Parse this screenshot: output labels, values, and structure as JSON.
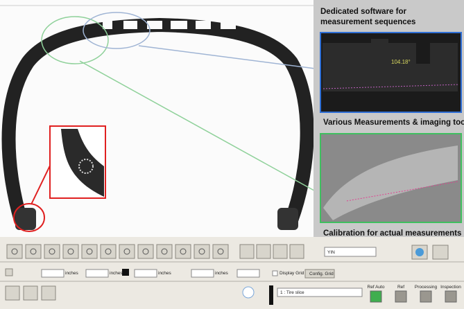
{
  "viewer": {
    "angle_label": "104.18°"
  },
  "callouts": {
    "software": "Dedicated software for measurement sequences",
    "tools": "Various Measurements & imaging tools",
    "calibration": "Calibration for actual measurements"
  },
  "toolbar": {
    "mode_select": "YIN",
    "units": [
      "inches",
      "inches",
      "inches",
      "inches"
    ],
    "display_grid": "Display Grid",
    "config_grid": "Config. Grid",
    "slice_select": "1 : Tire slice",
    "status": [
      "Ref Auto",
      "Ref",
      "Processing",
      "Inspection"
    ]
  }
}
